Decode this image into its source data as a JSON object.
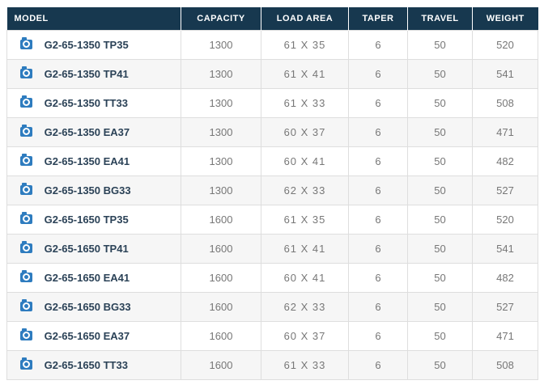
{
  "table": {
    "columns": [
      {
        "id": "model",
        "label": "MODEL"
      },
      {
        "id": "capacity",
        "label": "CAPACITY"
      },
      {
        "id": "load_area",
        "label": "LOAD AREA"
      },
      {
        "id": "taper",
        "label": "TAPER"
      },
      {
        "id": "travel",
        "label": "TRAVEL"
      },
      {
        "id": "weight",
        "label": "WEIGHT"
      }
    ],
    "row_icon": "camera-icon",
    "rows": [
      {
        "model": "G2-65-1350 TP35",
        "capacity": "1300",
        "load_area": "61 X 35",
        "taper": "6",
        "travel": "50",
        "weight": "520"
      },
      {
        "model": "G2-65-1350 TP41",
        "capacity": "1300",
        "load_area": "61 X 41",
        "taper": "6",
        "travel": "50",
        "weight": "541"
      },
      {
        "model": "G2-65-1350 TT33",
        "capacity": "1300",
        "load_area": "61 X 33",
        "taper": "6",
        "travel": "50",
        "weight": "508"
      },
      {
        "model": "G2-65-1350 EA37",
        "capacity": "1300",
        "load_area": "60 X 37",
        "taper": "6",
        "travel": "50",
        "weight": "471"
      },
      {
        "model": "G2-65-1350 EA41",
        "capacity": "1300",
        "load_area": "60 X 41",
        "taper": "6",
        "travel": "50",
        "weight": "482"
      },
      {
        "model": "G2-65-1350 BG33",
        "capacity": "1300",
        "load_area": "62 X 33",
        "taper": "6",
        "travel": "50",
        "weight": "527"
      },
      {
        "model": "G2-65-1650 TP35",
        "capacity": "1600",
        "load_area": "61 X 35",
        "taper": "6",
        "travel": "50",
        "weight": "520"
      },
      {
        "model": "G2-65-1650 TP41",
        "capacity": "1600",
        "load_area": "61 X 41",
        "taper": "6",
        "travel": "50",
        "weight": "541"
      },
      {
        "model": "G2-65-1650 EA41",
        "capacity": "1600",
        "load_area": "60 X 41",
        "taper": "6",
        "travel": "50",
        "weight": "482"
      },
      {
        "model": "G2-65-1650 BG33",
        "capacity": "1600",
        "load_area": "62 X 33",
        "taper": "6",
        "travel": "50",
        "weight": "527"
      },
      {
        "model": "G2-65-1650 EA37",
        "capacity": "1600",
        "load_area": "60 X 37",
        "taper": "6",
        "travel": "50",
        "weight": "471"
      },
      {
        "model": "G2-65-1650 TT33",
        "capacity": "1600",
        "load_area": "61 X 33",
        "taper": "6",
        "travel": "50",
        "weight": "508"
      }
    ]
  },
  "colors": {
    "header_bg": "#17384F",
    "header_text": "#FFFFFF",
    "model_text": "#2B4257",
    "cell_text": "#777777",
    "zebra": "#F6F6F6",
    "border": "#DEDEDE",
    "icon_blue": "#2E7CBF"
  }
}
